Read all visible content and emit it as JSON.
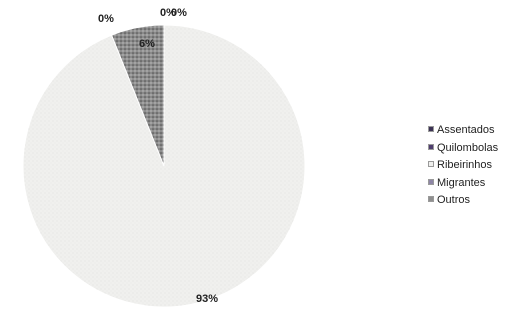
{
  "chart_data": {
    "type": "pie",
    "title": "",
    "categories": [
      "Assentados",
      "Quilombolas",
      "Ribeirinhos",
      "Migrantes",
      "Outros"
    ],
    "values": [
      0,
      0,
      93,
      0,
      6
    ],
    "labels": [
      "0%",
      "0%",
      "93%",
      "0%",
      "6%"
    ],
    "colors": [
      "#3b3253",
      "#4e3d6e",
      "#f0f0ee",
      "#8e86a6",
      "#8f8f8f"
    ],
    "legend": "right"
  }
}
